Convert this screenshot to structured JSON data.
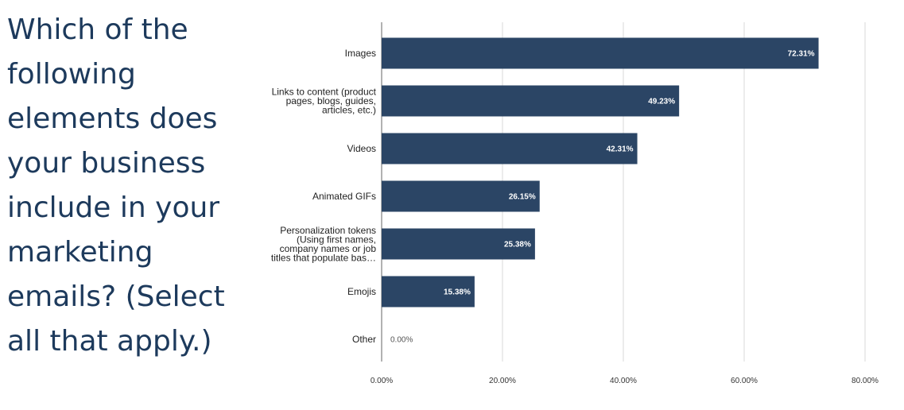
{
  "question": {
    "lines": [
      "Which of the",
      "following",
      "elements does",
      "your business",
      "include in your",
      "marketing",
      "emails? (Select",
      "all that apply.)"
    ]
  },
  "chart_data": {
    "type": "bar",
    "orientation": "horizontal",
    "categories": [
      [
        "Images"
      ],
      [
        "Links to content (product",
        "pages, blogs, guides,",
        "articles, etc.)"
      ],
      [
        "Videos"
      ],
      [
        "Animated GIFs"
      ],
      [
        "Personalization tokens",
        "(Using first names,",
        "company names or job",
        "titles that populate bas…"
      ],
      [
        "Emojis"
      ],
      [
        "Other"
      ]
    ],
    "values": [
      72.31,
      49.23,
      42.31,
      26.15,
      25.38,
      15.38,
      0.0
    ],
    "value_labels": [
      "72.31%",
      "49.23%",
      "42.31%",
      "26.15%",
      "25.38%",
      "15.38%",
      "0.00%"
    ],
    "xlim": [
      0,
      80
    ],
    "x_ticks": [
      0,
      20,
      40,
      60,
      80
    ],
    "x_tick_labels": [
      "0.00%",
      "20.00%",
      "40.00%",
      "60.00%",
      "80.00%"
    ],
    "grid": true,
    "legend": false,
    "bar_color": "#2b4565",
    "grid_color": "#d9d9d9",
    "axis_color": "#666666"
  }
}
